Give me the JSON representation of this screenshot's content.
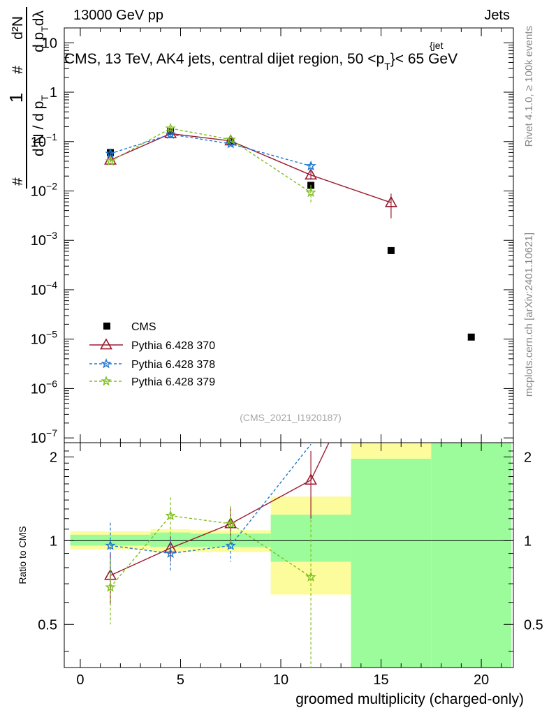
{
  "header": {
    "left": "13000 GeV pp",
    "right": "Jets",
    "main_title": "CMS, 13 TeV, AK4 jets, central dijet region, 50 <p",
    "main_title_sub": "T",
    "main_title_sup": "{jet",
    "main_title_end": "}< 65 GeV",
    "analysis_id": "(CMS_2021_I1920187)"
  },
  "side_labels": {
    "rivet": "Rivet 4.1.0, ≥ 100k events",
    "mcplots": "mcplots.cern.ch [arXiv:2401.10621]"
  },
  "axes": {
    "ylabel_num1": "1",
    "ylabel_den1": "d N / d p",
    "ylabel_den1_sub": "T",
    "ylabel_hash": "#",
    "ylabel_num2": "d²N",
    "ylabel_den2": "d p",
    "ylabel_den2_sub": "T",
    "ylabel_den2_end": "dλ",
    "ratio_ylabel": "Ratio to CMS",
    "xlabel": "groomed multiplicity (charged-only)"
  },
  "colors": {
    "cms": "#000000",
    "p370": "#9b1b30",
    "p378": "#1f77d0",
    "p379": "#7fbf1f",
    "band_green": "#9cfc9c",
    "band_yellow": "#fcfc9c"
  },
  "chart_data": {
    "type": "scatter",
    "x_range": [
      -0.8,
      21.6
    ],
    "y_range_log": [
      8e-08,
      20
    ],
    "ratio_range": [
      0.35,
      2.25
    ],
    "x_ticks": [
      0,
      5,
      10,
      15,
      20
    ],
    "y_ticks": [
      {
        "v": 1e-07,
        "base": "10",
        "exp": "−7"
      },
      {
        "v": 1e-06,
        "base": "10",
        "exp": "−6"
      },
      {
        "v": 1e-05,
        "base": "10",
        "exp": "−5"
      },
      {
        "v": 0.0001,
        "base": "10",
        "exp": "−4"
      },
      {
        "v": 0.001,
        "base": "10",
        "exp": "−3"
      },
      {
        "v": 0.01,
        "base": "10",
        "exp": "−2"
      },
      {
        "v": 0.1,
        "base": "10",
        "exp": "−1"
      },
      {
        "v": 1,
        "base": "1",
        "exp": ""
      },
      {
        "v": 10,
        "base": "10",
        "exp": ""
      }
    ],
    "ratio_ticks": [
      0.5,
      1,
      2
    ],
    "cms": {
      "name": "CMS",
      "x": [
        1.5,
        4.5,
        7.5,
        11.5,
        15.5,
        19.5
      ],
      "y": [
        0.06,
        0.16,
        0.1,
        0.013,
        0.00062,
        1.1e-05
      ]
    },
    "series": [
      {
        "name": "Pythia 6.428 370",
        "key": "p370",
        "marker": "triangle",
        "dashed": false,
        "x": [
          1.5,
          4.5,
          7.5,
          11.5,
          15.5
        ],
        "y": [
          0.042,
          0.145,
          0.103,
          0.021,
          0.0058
        ],
        "yerr": [
          0.003,
          0.005,
          0.004,
          0.004,
          0.003
        ],
        "rx": [
          1.5,
          4.5,
          7.5,
          11.5,
          12.4
        ],
        "ratio": [
          0.75,
          0.94,
          1.15,
          1.65,
          2.25
        ],
        "rerr": [
          0.16,
          0.1,
          0.16,
          0.45,
          0
        ]
      },
      {
        "name": "Pythia 6.428 378",
        "key": "p378",
        "marker": "star",
        "dashed": true,
        "x": [
          1.5,
          4.5,
          7.5,
          11.5
        ],
        "y": [
          0.057,
          0.14,
          0.09,
          0.032
        ],
        "yerr": [
          0.004,
          0.006,
          0.004,
          0.006
        ],
        "rx": [
          1.5,
          4.5,
          7.5,
          11.5
        ],
        "ratio": [
          0.96,
          0.9,
          0.96,
          2.22
        ],
        "rerr": [
          0.2,
          0.12,
          0.12,
          0
        ]
      },
      {
        "name": "Pythia 6.428 379",
        "key": "p379",
        "marker": "star",
        "dashed": true,
        "x": [
          1.5,
          4.5,
          7.5,
          11.5
        ],
        "y": [
          0.04,
          0.185,
          0.11,
          0.0093
        ],
        "yerr": [
          0.004,
          0.01,
          0.004,
          0.004
        ],
        "rx": [
          1.5,
          4.5,
          7.5,
          11.5
        ],
        "ratio": [
          0.68,
          1.23,
          1.15,
          0.74
        ],
        "rerr": [
          0.18,
          0.2,
          0.18,
          0.45
        ]
      }
    ],
    "bands": [
      {
        "x0": -0.5,
        "x1": 3.5,
        "g0": 0.96,
        "g1": 1.05,
        "y0": 0.93,
        "y1": 1.08
      },
      {
        "x0": 3.5,
        "x1": 5.5,
        "g0": 0.95,
        "g1": 1.07,
        "y0": 0.91,
        "y1": 1.1
      },
      {
        "x0": 5.5,
        "x1": 9.5,
        "g0": 0.95,
        "g1": 1.06,
        "y0": 0.91,
        "y1": 1.09
      },
      {
        "x0": 9.5,
        "x1": 13.5,
        "g0": 0.84,
        "g1": 1.24,
        "y0": 0.64,
        "y1": 1.44
      },
      {
        "x0": 13.5,
        "x1": 17.5,
        "g0": 0.35,
        "g1": 1.97,
        "y0": 0.35,
        "y1": 2.25
      },
      {
        "x0": 17.5,
        "x1": 21.5,
        "g0": 0.35,
        "g1": 2.25,
        "y0": 0.35,
        "y1": 2.25
      }
    ]
  }
}
